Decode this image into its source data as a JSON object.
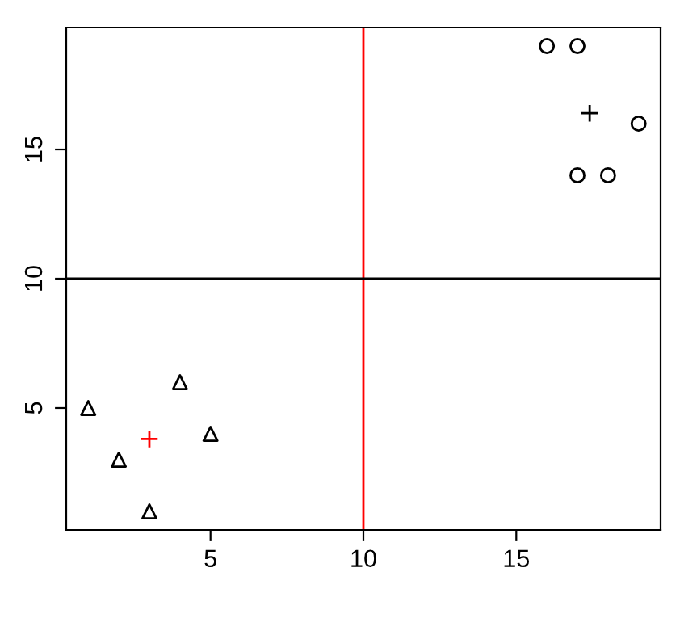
{
  "chart_data": {
    "type": "scatter",
    "xlim": [
      0.28,
      19.72
    ],
    "ylim": [
      0.28,
      19.72
    ],
    "xticks": [
      5,
      10,
      15
    ],
    "yticks": [
      5,
      10,
      15
    ],
    "grid": false,
    "series": [
      {
        "marker": "triangle",
        "color": "#000000",
        "x": [
          1,
          2,
          3,
          4,
          5
        ],
        "values": [
          5,
          3,
          1,
          6,
          4
        ]
      },
      {
        "marker": "circle",
        "color": "#000000",
        "x": [
          16,
          17,
          17,
          18,
          19
        ],
        "values": [
          19,
          19,
          14,
          14,
          16
        ]
      },
      {
        "marker": "cross",
        "color": "#ff0000",
        "x": [
          3
        ],
        "values": [
          3.8
        ]
      },
      {
        "marker": "cross",
        "color": "#000000",
        "x": [
          17.4
        ],
        "values": [
          16.4
        ]
      }
    ],
    "ref_lines": [
      {
        "axis": "x",
        "value": 10,
        "color": "#ff0000"
      },
      {
        "axis": "y",
        "value": 10,
        "color": "#000000"
      }
    ]
  }
}
